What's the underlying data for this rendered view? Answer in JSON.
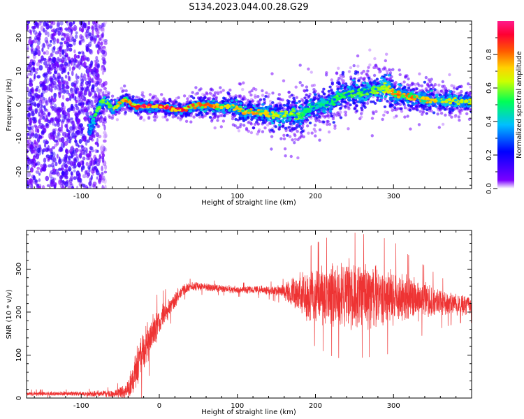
{
  "figure_title": "S134.2023.044.00.28.G29",
  "chart_data": [
    {
      "type": "heatmap",
      "title": "S134.2023.044.00.28.G29",
      "xlabel": "Height of straight line (km)",
      "ylabel": "Frequency (Hz)",
      "xlim": [
        -170,
        400
      ],
      "ylim": [
        -25,
        25
      ],
      "x_ticks": [
        -100,
        0,
        100,
        200,
        300
      ],
      "y_ticks": [
        -20,
        -10,
        0,
        10,
        20
      ],
      "colorbar": {
        "label": "Normalized spectral amplitude",
        "range": [
          0.0,
          1.0
        ],
        "ticks": [
          0.0,
          0.2,
          0.4,
          0.6,
          0.8
        ],
        "colormap": [
          "#ffffff",
          "#7b00ff",
          "#0000ff",
          "#00bfff",
          "#00ff55",
          "#ccff00",
          "#ffd200",
          "#ff5a00",
          "#ff0033",
          "#ff1a8c"
        ]
      },
      "noise_region_x": [
        -170,
        -78
      ],
      "ridge": {
        "x": [
          -90,
          -85,
          -80,
          -75,
          -70,
          -65,
          -60,
          -55,
          -50,
          -45,
          -40,
          -35,
          -30,
          -20,
          -10,
          0,
          10,
          20,
          30,
          40,
          50,
          60,
          70,
          80,
          90,
          100,
          110,
          120,
          130,
          140,
          150,
          160,
          170,
          180,
          190,
          200,
          210,
          220,
          230,
          240,
          250,
          260,
          270,
          280,
          290,
          300,
          310,
          320,
          330,
          340,
          350,
          360,
          370,
          380,
          390,
          395
        ],
        "frequency_hz": [
          -8,
          -5,
          -2,
          0.5,
          1,
          0,
          -1.5,
          -0.5,
          0.5,
          1.5,
          1,
          0,
          -0.5,
          -0.5,
          -0.5,
          -0.5,
          -0.8,
          -1.5,
          -1.5,
          -0.5,
          0,
          0,
          -0.5,
          -0.5,
          -0.5,
          -1.2,
          -2.2,
          -2.3,
          -2.3,
          -2.8,
          -3.2,
          -3.2,
          -2.5,
          -3.5,
          -1.5,
          -0.5,
          0.3,
          0.8,
          2.5,
          3.2,
          3.8,
          3.6,
          4.2,
          4.6,
          5.2,
          3.2,
          3,
          2.6,
          2.2,
          1.8,
          1.5,
          1.2,
          1.2,
          1,
          1,
          1
        ],
        "amplitude": [
          0.35,
          0.45,
          0.55,
          0.6,
          0.6,
          0.55,
          0.6,
          0.65,
          0.75,
          0.8,
          0.75,
          0.85,
          0.9,
          0.95,
          0.95,
          0.95,
          0.95,
          0.95,
          0.92,
          0.85,
          0.8,
          0.8,
          0.78,
          0.75,
          0.7,
          0.72,
          0.72,
          0.75,
          0.72,
          0.7,
          0.65,
          0.62,
          0.6,
          0.55,
          0.5,
          0.45,
          0.45,
          0.5,
          0.55,
          0.55,
          0.55,
          0.55,
          0.55,
          0.6,
          0.62,
          0.75,
          0.8,
          0.78,
          0.75,
          0.72,
          0.7,
          0.68,
          0.66,
          0.65,
          0.64,
          0.64
        ],
        "spread_hz": [
          2.5,
          2.5,
          2.2,
          1.8,
          1.6,
          1.6,
          1.6,
          1.6,
          1.6,
          1.6,
          1.6,
          1.5,
          1.5,
          1.4,
          1.4,
          1.4,
          1.4,
          1.4,
          1.4,
          1.6,
          1.8,
          1.9,
          2,
          2,
          2,
          2.2,
          2.3,
          2.5,
          2.5,
          2.8,
          3,
          3.2,
          3.5,
          3.8,
          3.5,
          3.3,
          3.3,
          3.2,
          3.2,
          3.2,
          3.3,
          3.3,
          3.4,
          3.5,
          3.6,
          3,
          2.8,
          2.6,
          2.5,
          2.4,
          2.3,
          2.2,
          2.2,
          2.1,
          2,
          2
        ]
      }
    },
    {
      "type": "line",
      "xlabel": "Height of straight line (km)",
      "ylabel": "SNR (10 * v/v)",
      "xlim": [
        -170,
        400
      ],
      "ylim": [
        0,
        390
      ],
      "x_ticks": [
        -100,
        0,
        100,
        200,
        300
      ],
      "y_ticks": [
        0,
        100,
        200,
        300
      ],
      "color": "#ee3333",
      "envelope": {
        "x": [
          -170,
          -100,
          -60,
          -45,
          -40,
          -30,
          -20,
          -10,
          0,
          10,
          20,
          30,
          40,
          50,
          60,
          80,
          100,
          120,
          140,
          160,
          170,
          180,
          200,
          220,
          240,
          260,
          280,
          300,
          320,
          340,
          360,
          380,
          400
        ],
        "mean": [
          10,
          10,
          10,
          15,
          20,
          60,
          110,
          150,
          175,
          205,
          230,
          250,
          258,
          260,
          258,
          255,
          252,
          252,
          250,
          248,
          245,
          240,
          240,
          238,
          238,
          238,
          237,
          235,
          232,
          228,
          222,
          218,
          215
        ],
        "halfwidth": [
          5,
          5,
          8,
          15,
          25,
          45,
          50,
          40,
          35,
          25,
          18,
          12,
          10,
          10,
          9,
          8,
          8,
          9,
          10,
          15,
          40,
          50,
          60,
          70,
          75,
          72,
          70,
          65,
          50,
          40,
          30,
          22,
          20
        ]
      }
    }
  ]
}
